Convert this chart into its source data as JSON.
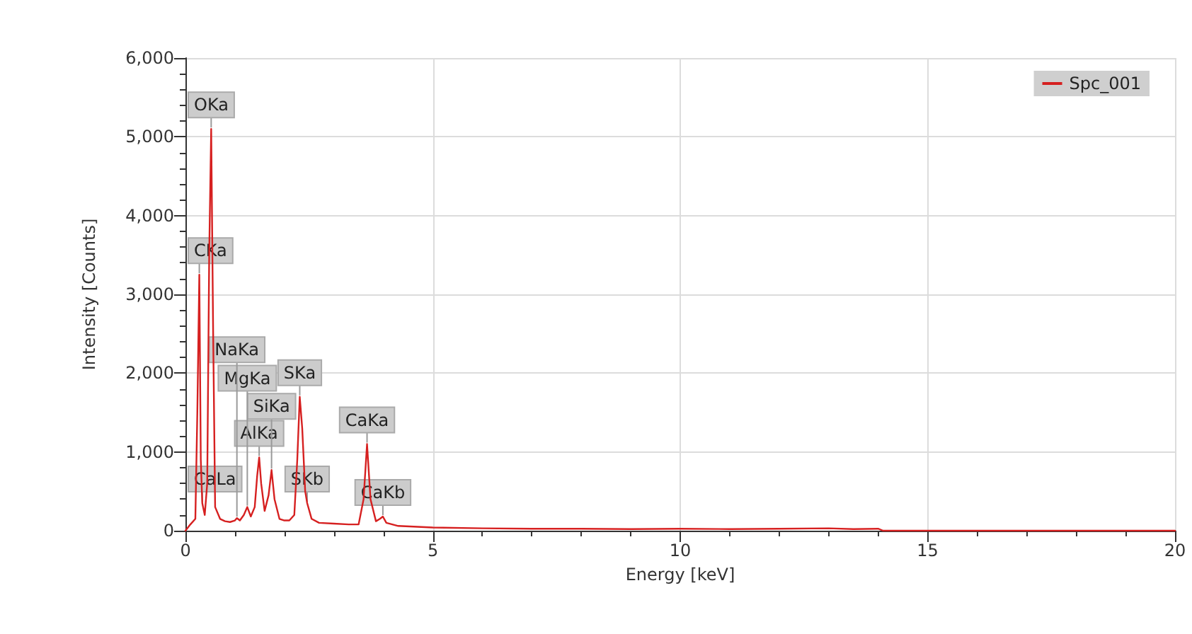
{
  "chart_data": {
    "type": "line",
    "xlabel": "Energy [keV]",
    "ylabel": "Intensity [Counts]",
    "x": [
      0,
      0.1,
      0.2,
      0.24,
      0.28,
      0.31,
      0.34,
      0.39,
      0.44,
      0.48,
      0.52,
      0.56,
      0.6,
      0.7,
      0.8,
      0.9,
      1.0,
      1.04,
      1.1,
      1.18,
      1.25,
      1.32,
      1.4,
      1.45,
      1.49,
      1.53,
      1.6,
      1.68,
      1.74,
      1.8,
      1.9,
      2.0,
      2.1,
      2.2,
      2.26,
      2.31,
      2.36,
      2.42,
      2.46,
      2.55,
      2.7,
      3.0,
      3.3,
      3.5,
      3.6,
      3.67,
      3.74,
      3.85,
      3.93,
      3.99,
      4.06,
      4.3,
      5,
      6,
      7,
      8,
      9,
      10,
      11,
      12,
      13,
      13.5,
      14,
      14.1,
      15,
      17,
      20
    ],
    "series": [
      {
        "name": "Spc_001",
        "color": "#d62020",
        "values": [
          0,
          80,
          150,
          1500,
          3250,
          900,
          350,
          200,
          600,
          3500,
          5100,
          2500,
          300,
          150,
          120,
          110,
          130,
          160,
          130,
          200,
          300,
          180,
          300,
          700,
          930,
          600,
          250,
          450,
          770,
          400,
          150,
          130,
          130,
          200,
          900,
          1700,
          1300,
          500,
          350,
          150,
          100,
          90,
          80,
          80,
          400,
          1100,
          400,
          120,
          150,
          180,
          100,
          60,
          40,
          30,
          25,
          25,
          20,
          25,
          20,
          25,
          30,
          20,
          25,
          0,
          0,
          0,
          0
        ]
      }
    ],
    "xlim": [
      0,
      20
    ],
    "xticks": [
      0,
      5,
      10,
      15,
      20
    ],
    "ylim": [
      0,
      6000
    ],
    "yticks": [
      {
        "value": 0,
        "label": "0"
      },
      {
        "value": 1000,
        "label": "1,000"
      },
      {
        "value": 2000,
        "label": "2,000"
      },
      {
        "value": 3000,
        "label": "3,000"
      },
      {
        "value": 4000,
        "label": "4,000"
      },
      {
        "value": 5000,
        "label": "5,000"
      },
      {
        "value": 6000,
        "label": "6,000"
      }
    ],
    "grid": true,
    "legend": "top right",
    "marker": "none",
    "line_style": "solid",
    "annotations": [
      {
        "text": "OKa",
        "x": 0.52,
        "y": 5100
      },
      {
        "text": "CKa",
        "x": 0.28,
        "y": 3250
      },
      {
        "text": "SKa",
        "x": 2.31,
        "y": 1700
      },
      {
        "text": "CaKa",
        "x": 3.67,
        "y": 1100
      },
      {
        "text": "AlKa",
        "x": 1.49,
        "y": 930
      },
      {
        "text": "SiKa",
        "x": 1.74,
        "y": 770
      },
      {
        "text": "CaLa",
        "x": 0.34,
        "y": 350
      },
      {
        "text": "SKb",
        "x": 2.46,
        "y": 350
      },
      {
        "text": "MgKa",
        "x": 1.25,
        "y": 300
      },
      {
        "text": "CaKb",
        "x": 3.99,
        "y": 180
      },
      {
        "text": "NaKa",
        "x": 1.04,
        "y": 160
      }
    ]
  }
}
